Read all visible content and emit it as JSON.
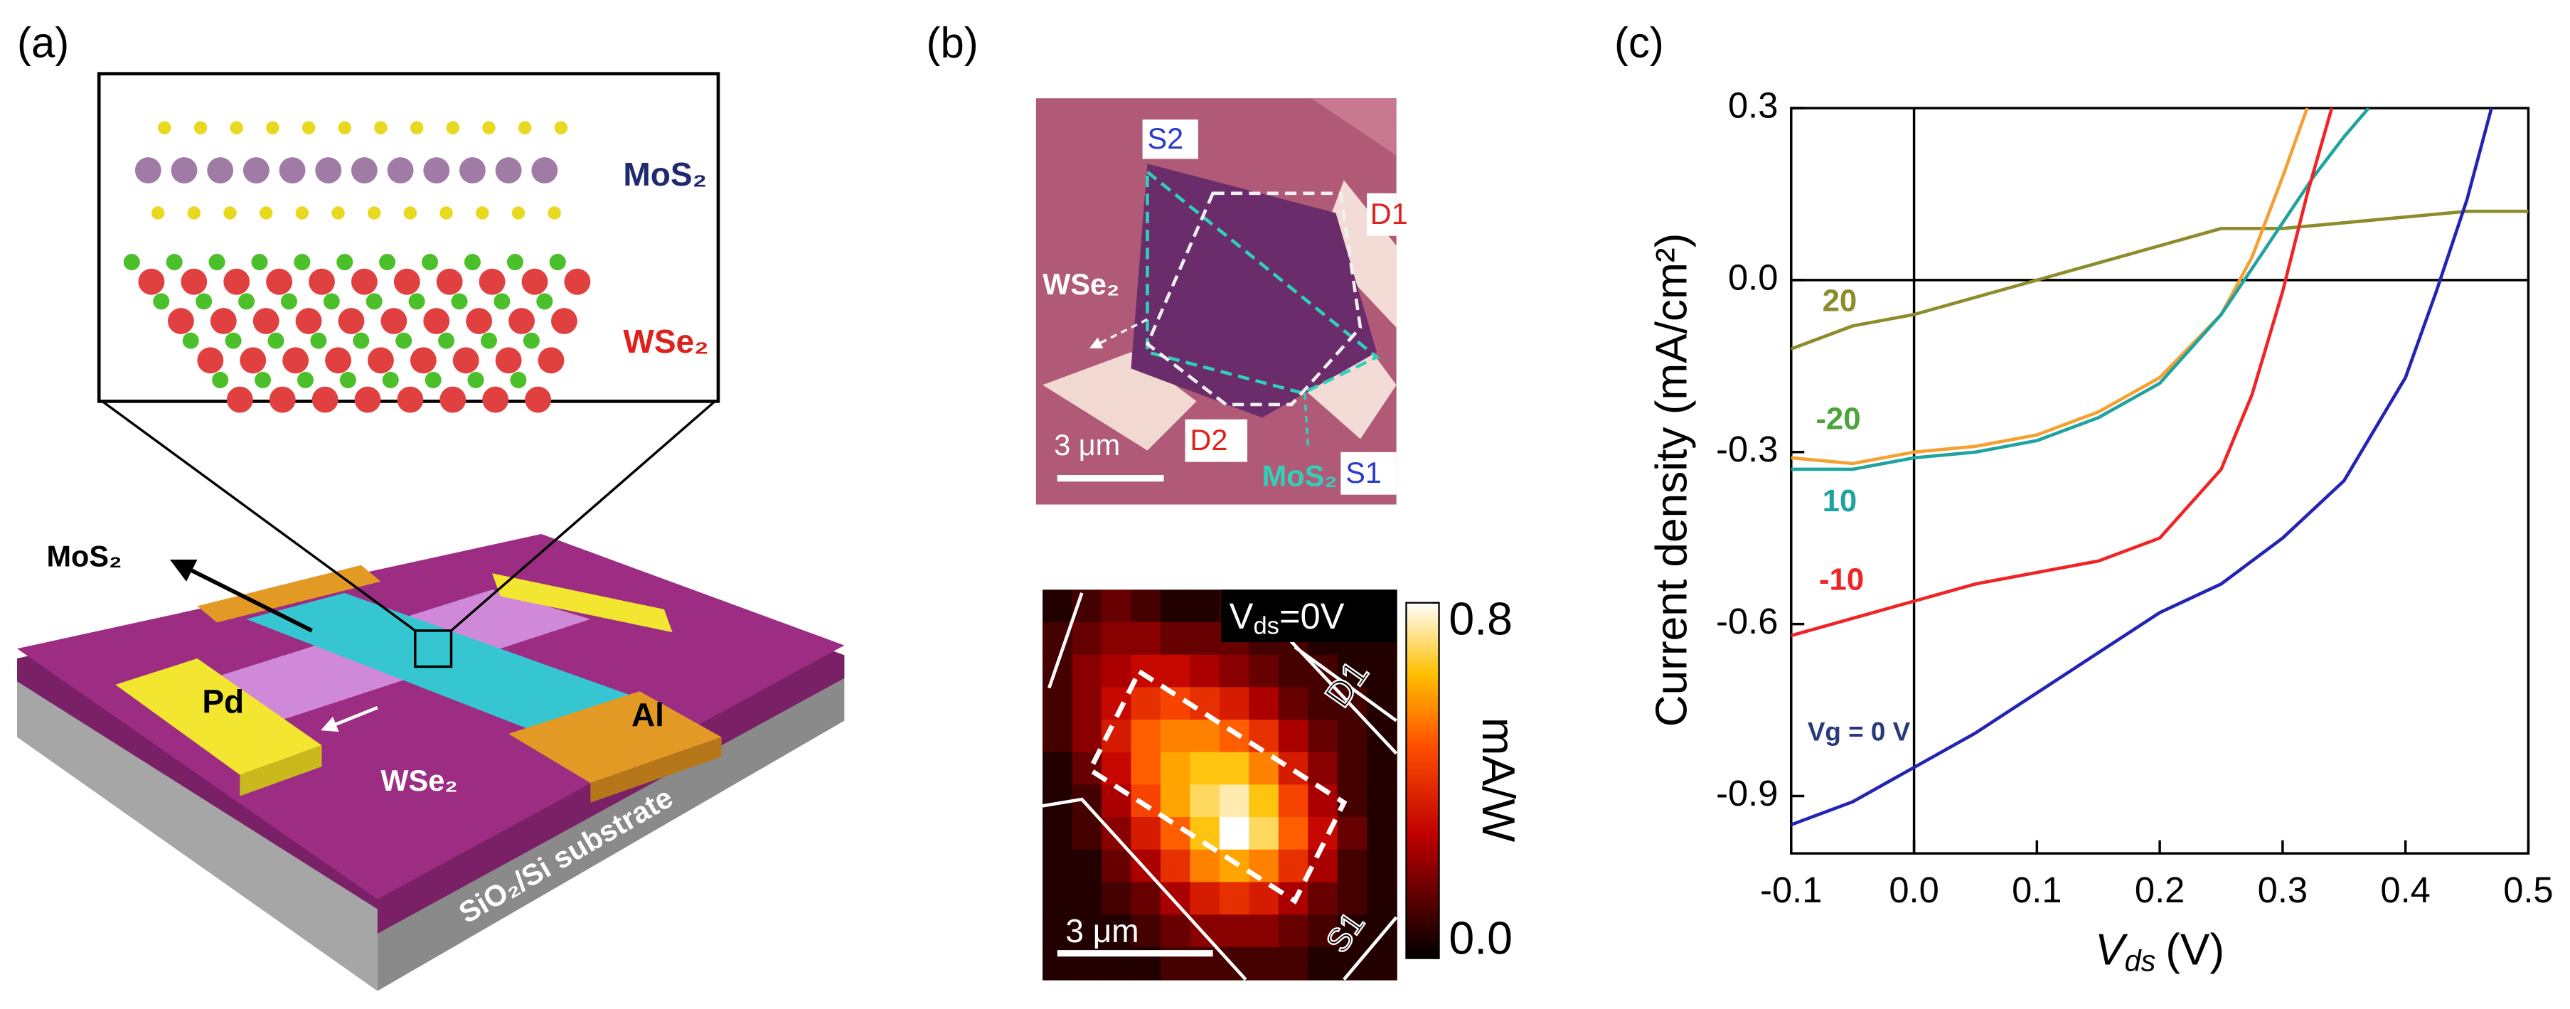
{
  "panel_labels": [
    "(a)",
    "(b)",
    "(c)"
  ],
  "device": {
    "inset_top_label": "MoS₂",
    "inset_bottom_label": "WSe₂",
    "top_layer_label": "MoS₂",
    "bottom_layer_label": "WSe₂",
    "left_contact": "Pd",
    "right_contact": "Al",
    "substrate": "SiO₂/Si substrate"
  },
  "micrograph": {
    "contacts": [
      "S2",
      "D1",
      "D2",
      "S1"
    ],
    "wse2": "WSe₂",
    "mos2": "MoS₂",
    "scale_bar": "3 μm"
  },
  "photocurrent_map": {
    "bias": {
      "symbol": "V",
      "subscript": "ds",
      "rest": "=0V"
    },
    "contacts": [
      "D1",
      "S1"
    ],
    "scale_bar": "3 μm",
    "colorbar_label": "mA/W",
    "colorbar_ticks": [
      0.8,
      {
        "value": 0,
        "label": "0.0"
      }
    ],
    "clim": [
      0,
      0.8
    ],
    "values": [
      [
        0.05,
        0.1,
        0.15,
        0.1,
        0.05,
        0.05,
        0.1,
        0.1,
        0.05,
        0.05,
        0.05,
        0.05
      ],
      [
        0.1,
        0.15,
        0.2,
        0.2,
        0.15,
        0.15,
        0.15,
        0.1,
        0.1,
        0.05,
        0.05,
        0.05
      ],
      [
        0.1,
        0.2,
        0.25,
        0.3,
        0.3,
        0.25,
        0.2,
        0.15,
        0.1,
        0.1,
        0.05,
        0.05
      ],
      [
        0.1,
        0.2,
        0.3,
        0.4,
        0.45,
        0.4,
        0.35,
        0.25,
        0.15,
        0.1,
        0.1,
        0.05
      ],
      [
        0.1,
        0.2,
        0.35,
        0.5,
        0.55,
        0.55,
        0.5,
        0.4,
        0.25,
        0.15,
        0.1,
        0.05
      ],
      [
        0.05,
        0.15,
        0.3,
        0.5,
        0.6,
        0.65,
        0.65,
        0.55,
        0.35,
        0.2,
        0.1,
        0.05
      ],
      [
        0.05,
        0.1,
        0.25,
        0.45,
        0.6,
        0.7,
        0.75,
        0.65,
        0.45,
        0.25,
        0.1,
        0.05
      ],
      [
        0.05,
        0.1,
        0.2,
        0.35,
        0.5,
        0.65,
        0.8,
        0.7,
        0.5,
        0.3,
        0.15,
        0.05
      ],
      [
        0.05,
        0.05,
        0.15,
        0.25,
        0.4,
        0.55,
        0.6,
        0.55,
        0.4,
        0.25,
        0.1,
        0.05
      ],
      [
        0.05,
        0.05,
        0.1,
        0.15,
        0.25,
        0.35,
        0.4,
        0.35,
        0.25,
        0.15,
        0.1,
        0.05
      ],
      [
        0.05,
        0.05,
        0.05,
        0.1,
        0.15,
        0.2,
        0.2,
        0.2,
        0.15,
        0.1,
        0.05,
        0.05
      ],
      [
        0.05,
        0.05,
        0.05,
        0.05,
        0.1,
        0.1,
        0.1,
        0.1,
        0.1,
        0.05,
        0.05,
        0.05
      ]
    ]
  },
  "chart_data": {
    "type": "line",
    "y_label": "Current density (mA/cm²)",
    "x_label": {
      "symbol": "V",
      "subscript": "ds",
      "unit": "(V)"
    },
    "xlim": [
      -0.1,
      0.5
    ],
    "ylim": [
      -1.0,
      0.3
    ],
    "xticks": [
      -0.1,
      {
        "value": 0,
        "label": "0.0"
      },
      0.1,
      0.2,
      0.3,
      0.4,
      0.5
    ],
    "yticks": [
      0.3,
      {
        "value": 0,
        "label": "0.0"
      },
      -0.3,
      -0.6,
      -0.9
    ],
    "zero_lines": true,
    "series": [
      {
        "name": "20",
        "color": "#8c8c2c",
        "label_color": "#8c8c2c",
        "x": [
          -0.1,
          -0.05,
          0,
          0.05,
          0.1,
          0.15,
          0.2,
          0.25,
          0.3,
          0.35,
          0.4,
          0.45,
          0.5
        ],
        "values": [
          -0.12,
          -0.08,
          -0.06,
          -0.03,
          0.0,
          0.03,
          0.06,
          0.09,
          0.09,
          0.1,
          0.11,
          0.12,
          0.12
        ]
      },
      {
        "name": "-20",
        "color": "#f5a031",
        "label_color": "#4ea43c",
        "x": [
          -0.1,
          -0.05,
          0,
          0.05,
          0.1,
          0.15,
          0.2,
          0.25,
          0.275,
          0.3,
          0.32
        ],
        "values": [
          -0.31,
          -0.32,
          -0.3,
          -0.29,
          -0.27,
          -0.23,
          -0.17,
          -0.06,
          0.04,
          0.18,
          0.3
        ]
      },
      {
        "name": "10",
        "color": "#1fa3a0",
        "label_color": "#1fa3a0",
        "x": [
          -0.1,
          -0.05,
          0,
          0.05,
          0.1,
          0.15,
          0.2,
          0.25,
          0.275,
          0.3,
          0.325,
          0.35,
          0.37
        ],
        "values": [
          -0.33,
          -0.33,
          -0.31,
          -0.3,
          -0.28,
          -0.24,
          -0.18,
          -0.06,
          0.02,
          0.1,
          0.18,
          0.25,
          0.3
        ]
      },
      {
        "name": "-10",
        "color": "#f02424",
        "label_color": "#f02424",
        "x": [
          -0.1,
          -0.05,
          0,
          0.05,
          0.1,
          0.15,
          0.2,
          0.25,
          0.275,
          0.3,
          0.32,
          0.34
        ],
        "values": [
          -0.62,
          -0.59,
          -0.56,
          -0.53,
          -0.51,
          -0.49,
          -0.45,
          -0.33,
          -0.2,
          -0.02,
          0.15,
          0.3
        ]
      },
      {
        "name": "Vg = 0 V",
        "color": "#2424b4",
        "label_color": "#2a3a78",
        "x": [
          -0.1,
          -0.05,
          0,
          0.05,
          0.1,
          0.15,
          0.2,
          0.25,
          0.3,
          0.35,
          0.4,
          0.425,
          0.45,
          0.47
        ],
        "values": [
          -0.95,
          -0.91,
          -0.85,
          -0.79,
          -0.72,
          -0.65,
          -0.58,
          -0.53,
          -0.45,
          -0.35,
          -0.17,
          -0.02,
          0.14,
          0.3
        ]
      }
    ]
  }
}
